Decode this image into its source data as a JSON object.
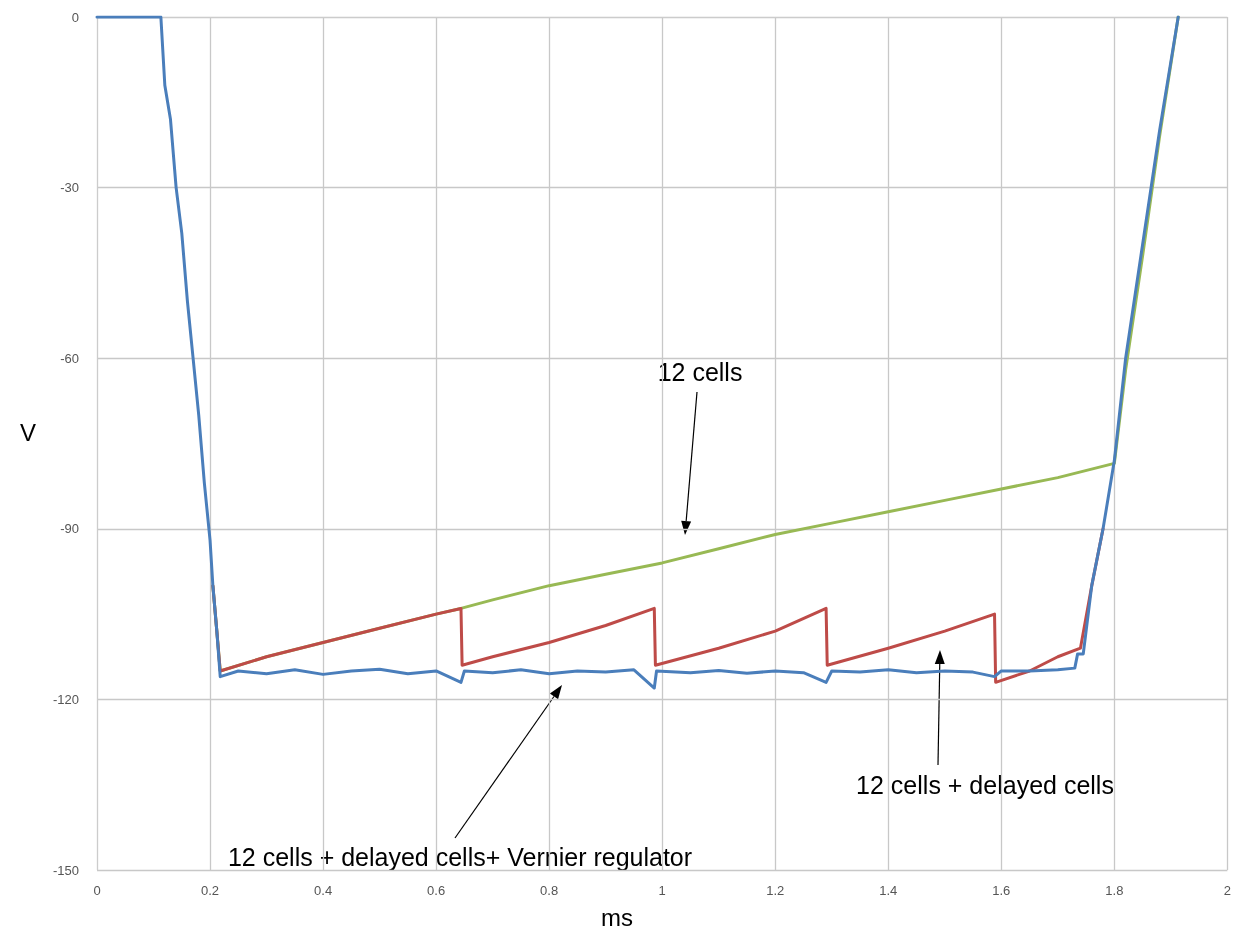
{
  "chart_data": {
    "type": "line",
    "xlabel": "ms",
    "ylabel": "V",
    "xlim": [
      0,
      2
    ],
    "xticks": [
      0,
      0.2,
      0.4,
      0.6,
      0.8,
      1,
      1.2,
      1.4,
      1.6,
      1.8,
      2
    ],
    "ylim": [
      -150,
      0
    ],
    "yticks": [
      -150,
      -120,
      -90,
      -60,
      -30,
      0
    ],
    "grid": true,
    "marker": "none",
    "line_style": "solid",
    "series": [
      {
        "color": "#98b954",
        "x": [
          0.205,
          0.212,
          0.218,
          0.3,
          0.4,
          0.5,
          0.6,
          0.644,
          0.7,
          0.8,
          0.9,
          1.0,
          1.1,
          1.2,
          1.3,
          1.4,
          1.5,
          1.6,
          1.7,
          1.8,
          1.82,
          1.85,
          1.88,
          1.913
        ],
        "values": [
          -100,
          -108,
          -115,
          -112.5,
          -110,
          -107.5,
          -105,
          -104,
          -102.5,
          -100,
          -98,
          -96,
          -93.5,
          -91,
          -89,
          -87,
          -85,
          -83,
          -81,
          -78.5,
          -62,
          -42,
          -21,
          0
        ]
      },
      {
        "color": "#be4b48",
        "x": [
          0.205,
          0.212,
          0.218,
          0.3,
          0.4,
          0.5,
          0.6,
          0.644,
          0.646,
          0.7,
          0.8,
          0.9,
          0.986,
          0.988,
          1.1,
          1.2,
          1.29,
          1.292,
          1.4,
          1.5,
          1.588,
          1.59,
          1.65,
          1.7,
          1.74,
          1.76,
          1.78
        ],
        "values": [
          -100,
          -108,
          -115,
          -112.5,
          -110,
          -107.5,
          -105,
          -104,
          -114,
          -112.5,
          -110,
          -107,
          -104,
          -114,
          -111,
          -108,
          -104,
          -114,
          -111,
          -108,
          -105,
          -117,
          -115,
          -112.5,
          -111,
          -100,
          -90
        ]
      },
      {
        "color": "#4a7ebb",
        "x": [
          0,
          0.113,
          0.12,
          0.13,
          0.14,
          0.15,
          0.16,
          0.17,
          0.18,
          0.19,
          0.2,
          0.205,
          0.212,
          0.218,
          0.25,
          0.3,
          0.35,
          0.4,
          0.45,
          0.5,
          0.55,
          0.6,
          0.644,
          0.65,
          0.7,
          0.75,
          0.8,
          0.85,
          0.9,
          0.95,
          0.986,
          0.99,
          1.05,
          1.1,
          1.15,
          1.2,
          1.25,
          1.29,
          1.3,
          1.35,
          1.4,
          1.45,
          1.5,
          1.55,
          1.588,
          1.6,
          1.65,
          1.7,
          1.73,
          1.735,
          1.745,
          1.76,
          1.78,
          1.8,
          1.82,
          1.85,
          1.88,
          1.913
        ],
        "values": [
          0,
          0,
          -12,
          -18,
          -30,
          -38,
          -50,
          -60,
          -70,
          -82,
          -92,
          -100,
          -108,
          -116,
          -115,
          -115.5,
          -114.8,
          -115.6,
          -115,
          -114.7,
          -115.5,
          -115,
          -117,
          -115,
          -115.3,
          -114.8,
          -115.5,
          -115,
          -115.2,
          -114.8,
          -118,
          -115,
          -115.3,
          -114.9,
          -115.4,
          -115,
          -115.3,
          -117,
          -115,
          -115.2,
          -114.8,
          -115.3,
          -115,
          -115.2,
          -116,
          -115,
          -115,
          -114.8,
          -114.5,
          -112,
          -112,
          -100,
          -90,
          -78,
          -60,
          -40,
          -20,
          0
        ]
      }
    ],
    "annotations": [
      "12 cells",
      "12 cells + delayed cells",
      "12 cells + delayed cells+ Vernier regulator"
    ]
  }
}
